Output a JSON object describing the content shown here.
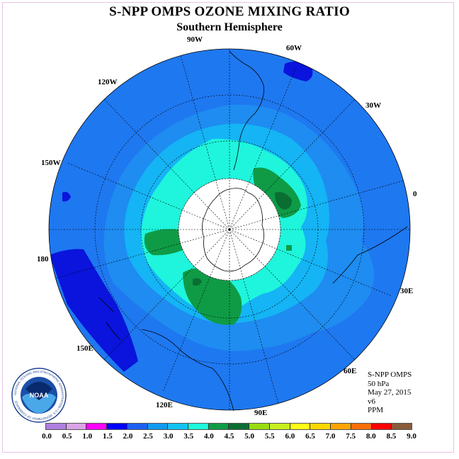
{
  "title": "S-NPP OMPS OZONE MIXING RATIO",
  "subtitle": "Southern Hemisphere",
  "longitude_labels": [
    "90W",
    "60W",
    "120W",
    "30W",
    "150W",
    "0",
    "180",
    "30E",
    "150E",
    "60E",
    "120E",
    "90E"
  ],
  "info": {
    "instrument": "S-NPP OMPS",
    "pressure": "50 hPa",
    "date": "May 27, 2015",
    "version": "v6",
    "units": "PPM"
  },
  "logo": {
    "text": "NOAA",
    "ring_text": "NATIONAL OCEANIC AND ATMOSPHERIC ADMINISTRATION • U.S. DEPARTMENT OF COMMERCE"
  },
  "colorbar": {
    "ticks": [
      "0.0",
      "0.5",
      "1.0",
      "1.5",
      "2.0",
      "2.5",
      "3.0",
      "3.5",
      "4.0",
      "4.5",
      "5.0",
      "5.5",
      "6.0",
      "6.5",
      "7.0",
      "7.5",
      "8.0",
      "8.5",
      "9.0"
    ],
    "colors": [
      "#b07de0",
      "#dba3e6",
      "#ff00ff",
      "#0000ff",
      "#1e60f0",
      "#0f9cf0",
      "#14c3f5",
      "#1efadc",
      "#0f9b46",
      "#0a6e32",
      "#9bdc0f",
      "#c8f01e",
      "#ffff14",
      "#ffd700",
      "#ffa500",
      "#ff6e0a",
      "#ff0000",
      "#8b5a3c"
    ]
  },
  "map_colors": {
    "ocean_fill": "#1e78f0",
    "band_2_5": "#1e8cf0",
    "band_3_0": "#14b4f5",
    "band_3_5": "#1ef5dc",
    "band_4_0": "#0f9b46",
    "band_4_5": "#0a6e32",
    "band_low": "#0a14dc",
    "pole_hole": "#ffffff"
  }
}
